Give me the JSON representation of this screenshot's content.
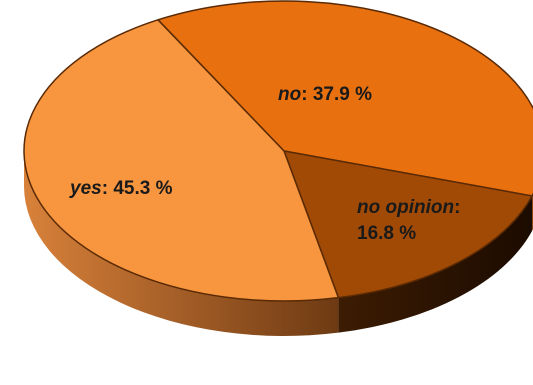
{
  "chart_data": {
    "type": "pie",
    "style": "3d",
    "title": "",
    "slices": [
      {
        "name": "no",
        "value": 37.9,
        "label": "37.9 %",
        "color": "#e8700f"
      },
      {
        "name": "no opinion",
        "value": 16.8,
        "label": "16.8 %",
        "color": "#a14a05"
      },
      {
        "name": "yes",
        "value": 45.3,
        "label": "45.3 %",
        "color": "#f7963f"
      }
    ],
    "legend": "none",
    "start_angle_deg": 241,
    "direction": "clockwise"
  }
}
